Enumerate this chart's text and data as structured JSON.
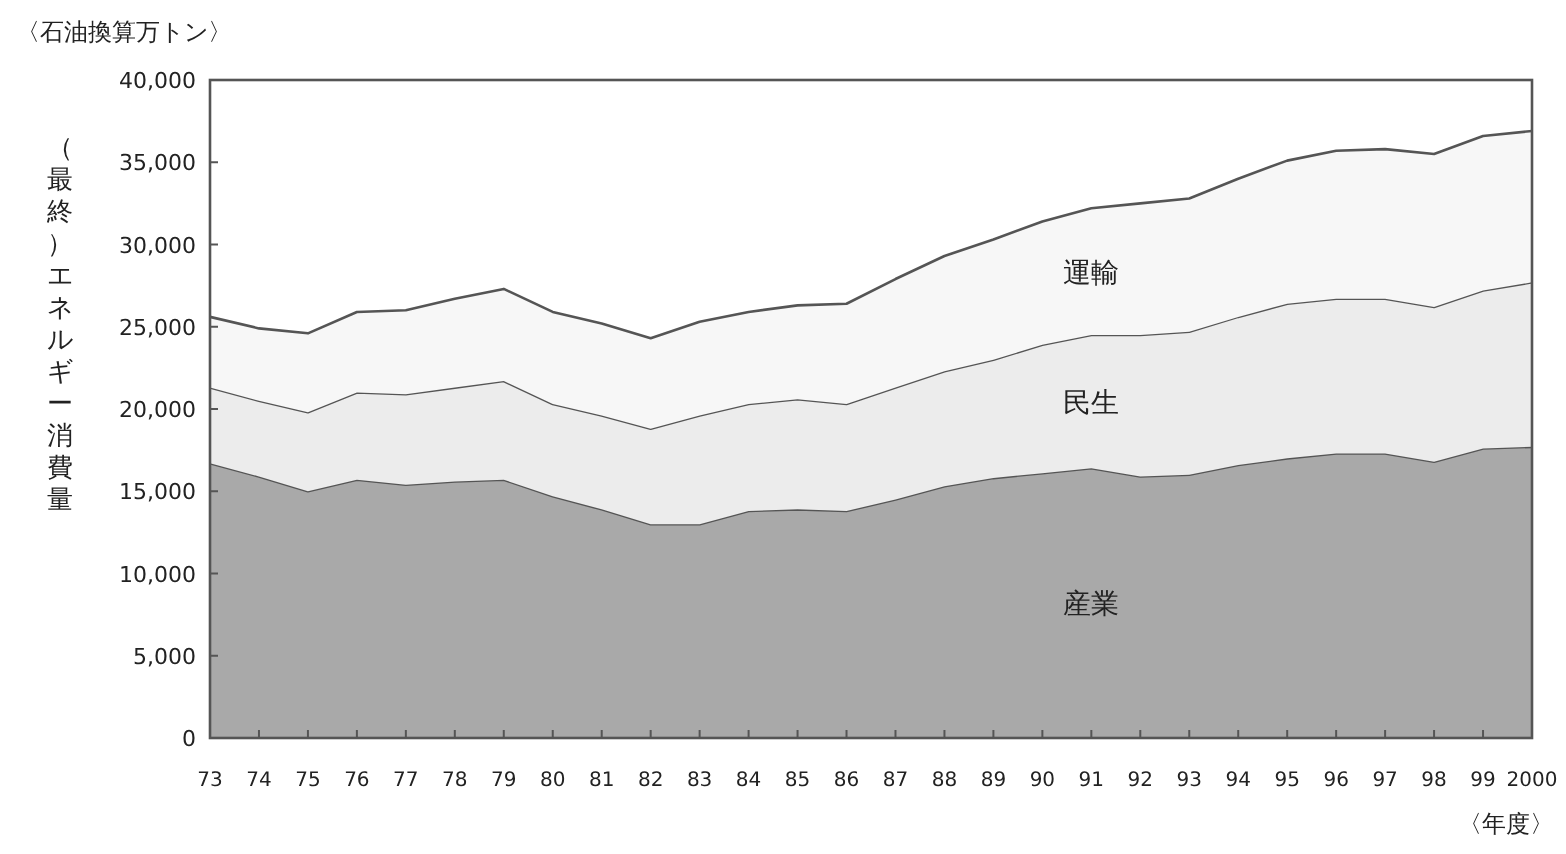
{
  "chart_data": {
    "type": "area",
    "stacked": true,
    "xlabel": "〈年度〉",
    "ylabel": "（最終）エネルギー消費量",
    "annotations": [
      "〈石油換算万トン〉"
    ],
    "categories": [
      "73",
      "74",
      "75",
      "76",
      "77",
      "78",
      "79",
      "80",
      "81",
      "82",
      "83",
      "84",
      "85",
      "86",
      "87",
      "88",
      "89",
      "90",
      "91",
      "92",
      "93",
      "94",
      "95",
      "96",
      "97",
      "98",
      "99",
      "2000"
    ],
    "series": [
      {
        "name": "産業",
        "color": "#a9a9a9",
        "values": [
          16700,
          15900,
          15000,
          15700,
          15400,
          15600,
          15700,
          14700,
          13900,
          13000,
          13000,
          13800,
          13900,
          13800,
          14500,
          15300,
          15800,
          16100,
          16400,
          15900,
          16000,
          16600,
          17000,
          17300,
          17300,
          16800,
          17600,
          17700
        ]
      },
      {
        "name": "民生",
        "color": "#ececec",
        "values": [
          4600,
          4600,
          4800,
          5300,
          5500,
          5700,
          6000,
          5600,
          5700,
          5800,
          6600,
          6500,
          6700,
          6500,
          6800,
          7000,
          7200,
          7800,
          8100,
          8600,
          8700,
          9000,
          9400,
          9400,
          9400,
          9400,
          9600,
          10000
        ]
      },
      {
        "name": "運輸",
        "color": "#f7f7f7",
        "values": [
          4300,
          4400,
          4800,
          4900,
          5100,
          5400,
          5600,
          5600,
          5600,
          5500,
          5700,
          5600,
          5700,
          6100,
          6600,
          7000,
          7300,
          7500,
          7700,
          8000,
          8100,
          8400,
          8700,
          9000,
          9100,
          9300,
          9400,
          9200
        ]
      }
    ],
    "ylim": [
      0,
      40000
    ],
    "yticks": [
      0,
      {
        "value": 5000,
        "label": "5,000"
      },
      {
        "value": 10000,
        "label": "10,000"
      },
      {
        "value": 15000,
        "label": "15,000"
      },
      {
        "value": 20000,
        "label": "20,000"
      },
      {
        "value": 25000,
        "label": "25,000"
      },
      {
        "value": 30000,
        "label": "30,000"
      },
      {
        "value": 35000,
        "label": "35,000"
      },
      {
        "value": 40000,
        "label": "40,000"
      }
    ]
  }
}
